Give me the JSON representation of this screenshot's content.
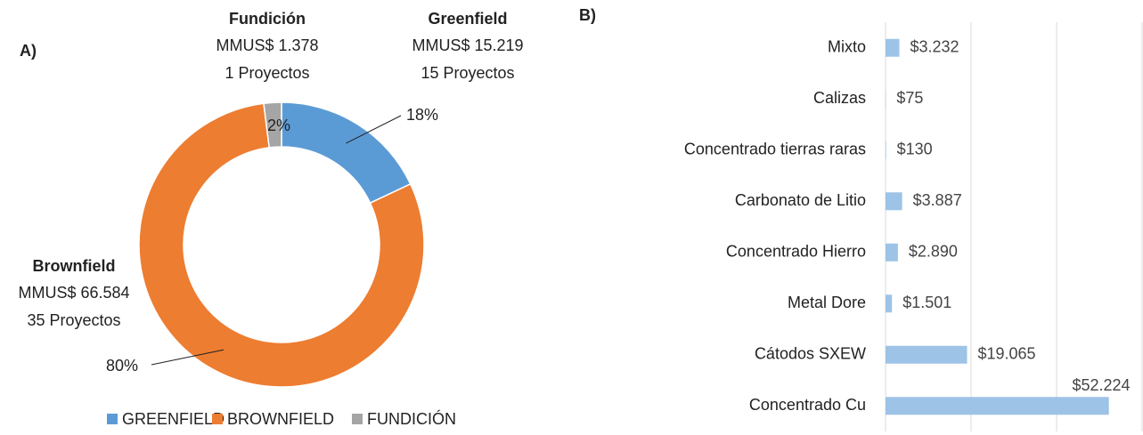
{
  "chart_data": [
    {
      "type": "donut",
      "title": "A)",
      "categories": [
        "GREENFIELD",
        "BROWNFIELD",
        "FUNDICIÓN"
      ],
      "values": [
        18,
        80,
        2
      ],
      "value_labels": [
        "18%",
        "80%",
        "2%"
      ],
      "colors": [
        "#5b9bd5",
        "#ed7d31",
        "#a5a5a5"
      ],
      "annotations": [
        {
          "title": "Greenfield",
          "amount": "MMUS$ 15.219",
          "projects": "15 Proyectos"
        },
        {
          "title": "Brownfield",
          "amount": "MMUS$ 66.584",
          "projects": "35 Proyectos"
        },
        {
          "title": "Fundición",
          "amount": "MMUS$ 1.378",
          "projects": "1 Proyectos"
        }
      ],
      "legend": "bottom"
    },
    {
      "type": "hbar",
      "title": "B)",
      "categories": [
        "Concentrado Cu",
        "Cátodos SXEW",
        "Metal Dore",
        "Concentrado Hierro",
        "Carbonato de Litio",
        "Concentrado tierras raras",
        "Calizas",
        "Mixto"
      ],
      "values": [
        52224,
        19065,
        1501,
        2890,
        3887,
        130,
        75,
        3232
      ],
      "value_labels": [
        "$52.224",
        "$19.065",
        "$1.501",
        "$2.890",
        "$3.887",
        "$130",
        "$75",
        "$3.232"
      ],
      "color": "#9dc3e6",
      "xlim": [
        0,
        60000
      ],
      "xticks": [
        0,
        20000,
        40000,
        60000
      ],
      "grid": true
    }
  ]
}
